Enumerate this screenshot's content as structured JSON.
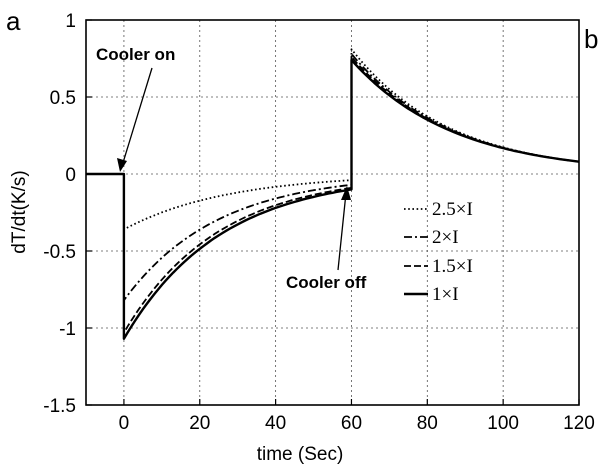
{
  "panel_labels": {
    "left": "a",
    "right": "b"
  },
  "chart_data": {
    "type": "line",
    "title": "",
    "xlabel": "time (Sec)",
    "ylabel": "dT/dt(K/s)",
    "xlim": [
      -10,
      120
    ],
    "ylim": [
      -1.5,
      1
    ],
    "xticks": [
      0,
      20,
      40,
      60,
      80,
      100,
      120
    ],
    "yticks": [
      -1.5,
      -1,
      -0.5,
      0,
      0.5,
      1
    ],
    "xtick_labels": [
      "0",
      "20",
      "40",
      "60",
      "80",
      "100",
      "120"
    ],
    "ytick_labels": [
      "-1.5",
      "-1",
      "-0.5",
      "0",
      "0.5",
      "1"
    ],
    "grid": true,
    "legend_position": "center-right",
    "cooler_on_time": 0,
    "cooler_off_time": 60,
    "series": [
      {
        "name": "2.5×I",
        "legend_label": "2.5×I",
        "style": "dotted",
        "pre": 0,
        "on_start": -0.36,
        "on_end": -0.04,
        "off_peak": 0.81,
        "end": 0.08
      },
      {
        "name": "2×I",
        "legend_label": "2×I",
        "style": "dashdot",
        "pre": 0,
        "on_start": -0.82,
        "on_end": -0.07,
        "off_peak": 0.78,
        "end": 0.08
      },
      {
        "name": "1.5×I",
        "legend_label": "1.5×I",
        "style": "dashed",
        "pre": 0,
        "on_start": -1.03,
        "on_end": -0.09,
        "off_peak": 0.76,
        "end": 0.08
      },
      {
        "name": "1×I",
        "legend_label": "1×I",
        "style": "solid",
        "pre": 0,
        "on_start": -1.07,
        "on_end": -0.1,
        "off_peak": 0.74,
        "end": 0.08
      }
    ],
    "annotations": [
      {
        "text": "Cooler on",
        "x": 0,
        "y": 0
      },
      {
        "text": "Cooler off",
        "x": 60,
        "y": -0.1
      }
    ]
  },
  "colors": {
    "line": "#000000",
    "grid": "#555555",
    "background": "#ffffff"
  }
}
